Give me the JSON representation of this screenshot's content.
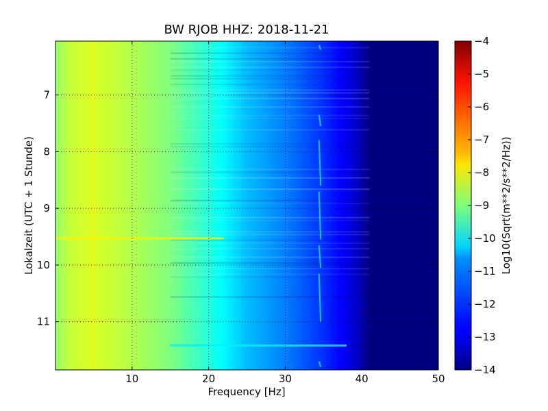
{
  "chart_data": {
    "type": "heatmap",
    "title": "BW RJOB HHZ: 2018-11-21",
    "xlabel": "Frequency [Hz]",
    "ylabel": "Lokalzeit (UTC + 1 Stunde)",
    "colorbar_label": "Log10(Sqrt(m**2/s**2/Hz))",
    "xlim": [
      0,
      50
    ],
    "ylim": [
      11.85,
      6.05
    ],
    "y_inverted": true,
    "x_ticks": [
      10,
      20,
      30,
      40,
      50
    ],
    "x_tick_labels": [
      "10",
      "20",
      "30",
      "40",
      "50"
    ],
    "y_ticks": [
      7,
      8,
      9,
      10,
      11
    ],
    "y_tick_labels": [
      "7",
      "8",
      "9",
      "10",
      "11"
    ],
    "colorbar_range": [
      -14,
      -4
    ],
    "colorbar_ticks": [
      -4,
      -5,
      -6,
      -7,
      -8,
      -9,
      -10,
      -11,
      -12,
      -13,
      -14
    ],
    "colorbar_tick_labels": [
      "−4",
      "−5",
      "−6",
      "−7",
      "−8",
      "−9",
      "−10",
      "−11",
      "−12",
      "−13",
      "−14"
    ],
    "colormap": "jet",
    "grid": true,
    "frequency_profile": {
      "x": [
        0,
        2,
        5,
        10,
        15,
        20,
        25,
        30,
        35,
        38,
        40,
        41,
        43,
        50
      ],
      "values": [
        -8.8,
        -8.3,
        -8.1,
        -8.5,
        -9.0,
        -9.9,
        -10.9,
        -11.5,
        -12.3,
        -12.9,
        -13.5,
        -14,
        -14,
        -14
      ]
    },
    "features": [
      {
        "type": "line",
        "x": 5,
        "y_range": [
          6.05,
          11.85
        ],
        "value": -7.6
      },
      {
        "type": "band",
        "y": 9.53,
        "x_range": [
          0,
          22
        ],
        "value": -7.6
      },
      {
        "type": "band",
        "y": 11.42,
        "x_range": [
          15,
          38
        ],
        "value": -10.3
      },
      {
        "type": "trace",
        "x": 34.5,
        "value": -10.5
      }
    ]
  }
}
